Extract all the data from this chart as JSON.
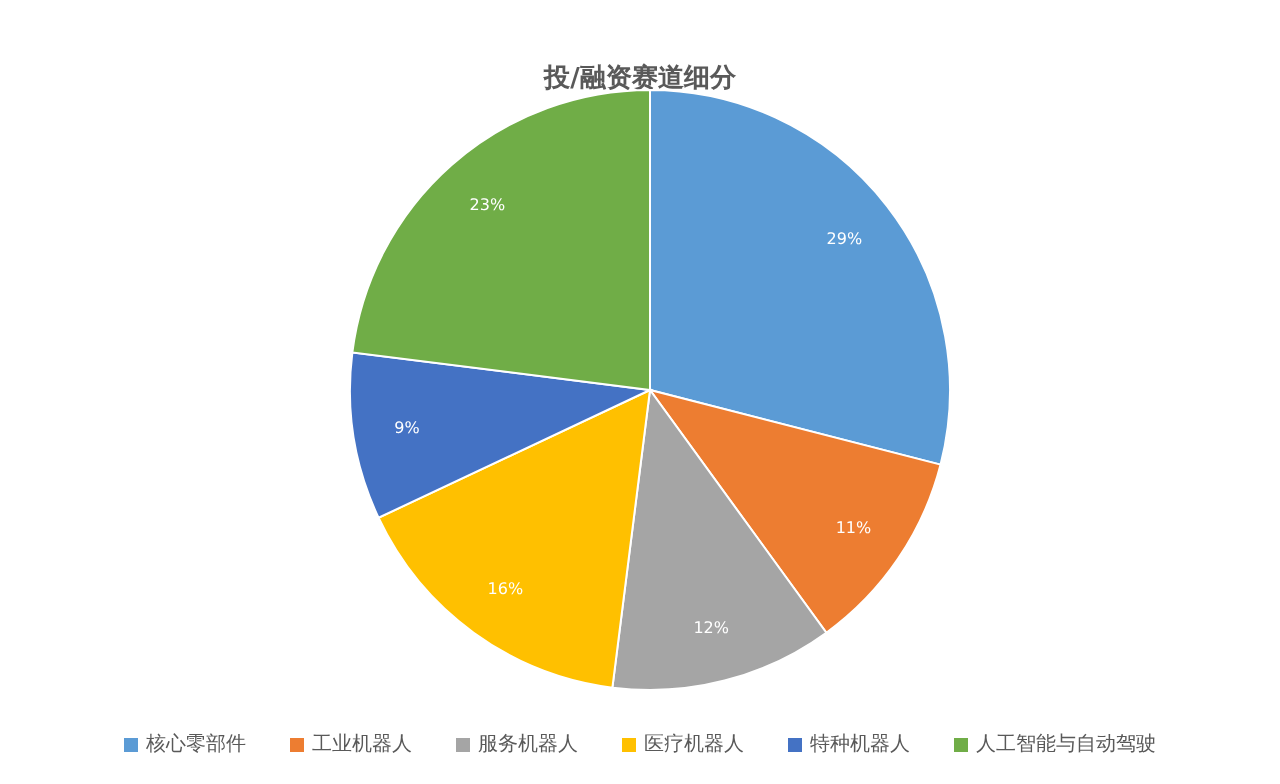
{
  "chart_data": {
    "type": "pie",
    "title": "投/融资赛道细分",
    "categories": [
      "核心零部件",
      "工业机器人",
      "服务机器人",
      "医疗机器人",
      "特种机器人",
      "人工智能与自动驾驶"
    ],
    "values": [
      29,
      11,
      12,
      16,
      9,
      23
    ],
    "colors": [
      "#5b9bd5",
      "#ed7d31",
      "#a5a5a5",
      "#ffc000",
      "#4472c4",
      "#70ad47"
    ],
    "value_labels": [
      "29%",
      "11%",
      "12%",
      "16%",
      "9%",
      "23%"
    ],
    "legend": "bottom"
  }
}
